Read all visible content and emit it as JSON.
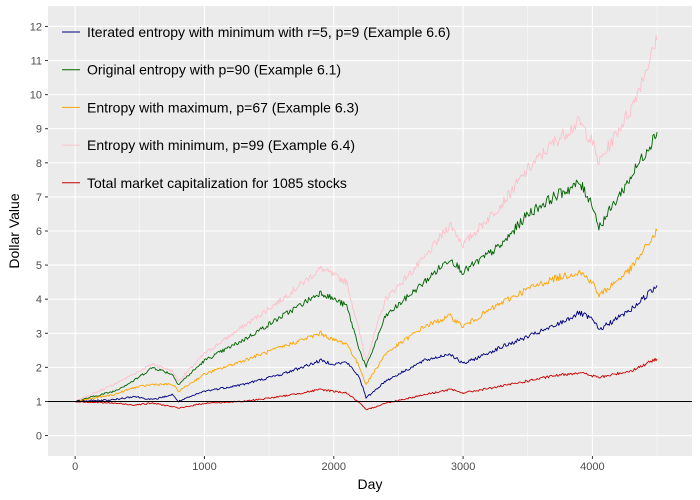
{
  "chart_data": {
    "type": "line",
    "title": "",
    "xlabel": "Day",
    "ylabel": "Dollar Value",
    "xlim": [
      -210,
      4770
    ],
    "ylim": [
      -0.6,
      12.6
    ],
    "x_ticks": [
      0,
      1000,
      2000,
      3000,
      4000
    ],
    "y_ticks": [
      0,
      1,
      2,
      3,
      4,
      5,
      6,
      7,
      8,
      9,
      10,
      11,
      12
    ],
    "reference_line": {
      "y": 1,
      "color": "#000000"
    },
    "panel_background": "#ebebeb",
    "grid_color": "#ffffff",
    "legend_position": "top-left",
    "series": [
      {
        "name": "Iterated entropy with minimum with r=5, p=9 (Example 6.6)",
        "color": "#00007f",
        "x": [
          0,
          300,
          450,
          600,
          750,
          800,
          1000,
          1300,
          1600,
          1900,
          2000,
          2100,
          2200,
          2250,
          2400,
          2700,
          2900,
          3000,
          3300,
          3500,
          3700,
          3900,
          4000,
          4050,
          4300,
          4500
        ],
        "y": [
          1.0,
          1.05,
          1.15,
          1.05,
          1.2,
          1.0,
          1.3,
          1.5,
          1.8,
          2.2,
          2.1,
          2.15,
          1.7,
          1.1,
          1.6,
          2.2,
          2.4,
          2.1,
          2.6,
          2.9,
          3.2,
          3.6,
          3.4,
          3.1,
          3.7,
          4.4
        ]
      },
      {
        "name": "Original entropy with p=90 (Example 6.1)",
        "color": "#006400",
        "x": [
          0,
          300,
          450,
          600,
          750,
          800,
          1000,
          1300,
          1600,
          1900,
          2000,
          2100,
          2200,
          2250,
          2400,
          2700,
          2900,
          3000,
          3300,
          3500,
          3700,
          3900,
          4000,
          4050,
          4300,
          4500
        ],
        "y": [
          1.0,
          1.3,
          1.6,
          2.0,
          1.8,
          1.5,
          2.2,
          2.8,
          3.5,
          4.2,
          4.0,
          3.8,
          2.5,
          2.0,
          3.5,
          4.5,
          5.2,
          4.8,
          5.6,
          6.5,
          7.0,
          7.4,
          6.8,
          6.1,
          7.6,
          8.9
        ]
      },
      {
        "name": "Entropy with maximum, p=67 (Example 6.3)",
        "color": "#ffa500",
        "x": [
          0,
          300,
          450,
          600,
          750,
          800,
          1000,
          1300,
          1600,
          1900,
          2000,
          2100,
          2200,
          2250,
          2400,
          2700,
          2900,
          3000,
          3300,
          3500,
          3700,
          3900,
          4000,
          4050,
          4300,
          4500
        ],
        "y": [
          1.0,
          1.2,
          1.4,
          1.5,
          1.5,
          1.3,
          1.8,
          2.2,
          2.6,
          3.0,
          2.8,
          2.7,
          2.0,
          1.5,
          2.4,
          3.2,
          3.5,
          3.2,
          3.9,
          4.3,
          4.6,
          4.8,
          4.5,
          4.1,
          4.9,
          6.0
        ]
      },
      {
        "name": "Entropy with minimum, p=99 (Example 6.4)",
        "color": "#ffc0cb",
        "x": [
          0,
          300,
          450,
          600,
          750,
          800,
          1000,
          1300,
          1600,
          1900,
          2000,
          2100,
          2200,
          2250,
          2400,
          2700,
          2900,
          3000,
          3300,
          3500,
          3700,
          3900,
          4000,
          4050,
          4300,
          4500
        ],
        "y": [
          1.0,
          1.5,
          1.8,
          2.1,
          1.9,
          1.6,
          2.4,
          3.2,
          4.0,
          4.9,
          4.7,
          4.5,
          3.0,
          2.2,
          4.0,
          5.2,
          6.2,
          5.6,
          6.8,
          7.8,
          8.6,
          9.2,
          8.6,
          8.0,
          9.6,
          11.6
        ]
      },
      {
        "name": "Total market capitalization for 1085 stocks",
        "color": "#cc0000",
        "x": [
          0,
          300,
          450,
          600,
          750,
          800,
          1000,
          1300,
          1600,
          1900,
          2000,
          2100,
          2200,
          2250,
          2400,
          2700,
          2900,
          3000,
          3300,
          3500,
          3700,
          3900,
          4000,
          4050,
          4300,
          4500
        ],
        "y": [
          1.0,
          0.95,
          0.9,
          0.95,
          0.85,
          0.8,
          0.95,
          1.0,
          1.15,
          1.35,
          1.3,
          1.25,
          0.95,
          0.75,
          0.95,
          1.2,
          1.35,
          1.25,
          1.45,
          1.6,
          1.75,
          1.85,
          1.75,
          1.7,
          1.9,
          2.25
        ]
      }
    ]
  }
}
